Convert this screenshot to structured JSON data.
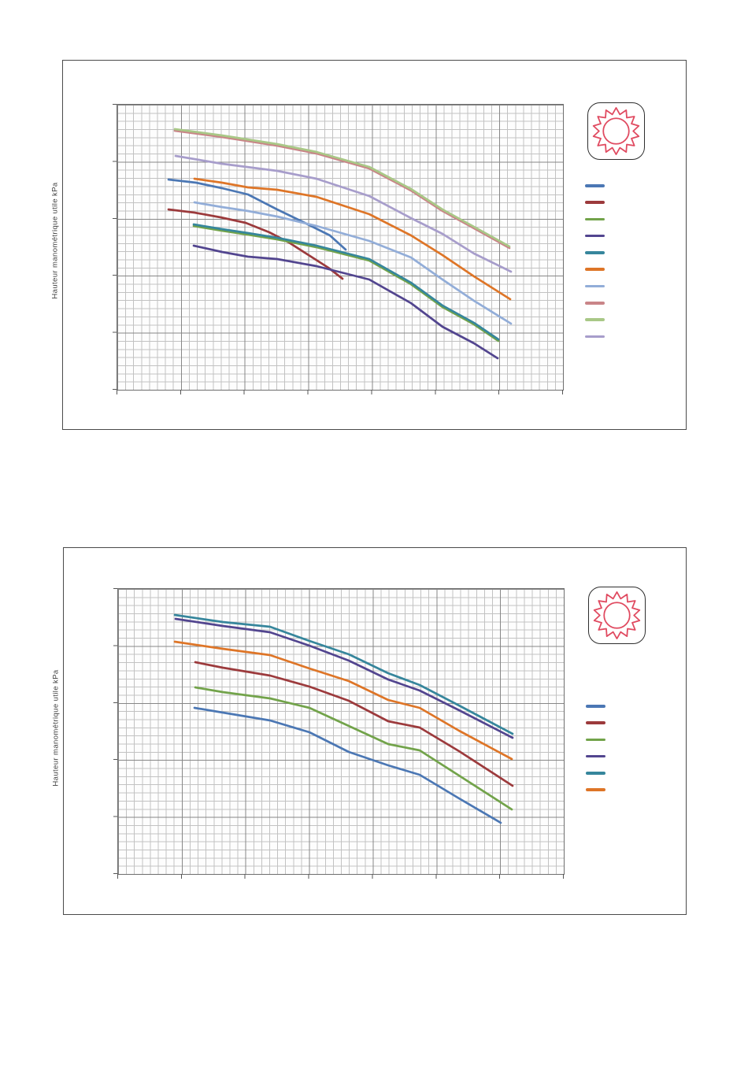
{
  "page": {
    "background": "#ffffff",
    "frame_border_color": "#4a4a4a"
  },
  "sun_badge": {
    "icon": "sun-icon",
    "color": "#E04A60",
    "box_border": "#2e2e2e"
  },
  "axes_note": "No numeric tick labels are shown on either chart; only minor/major gridlines and tick marks.",
  "chart_data": [
    {
      "type": "line",
      "title": "",
      "xlabel": "",
      "ylabel": "Hauteur manométrique utile kPa",
      "x_tick_labels": [],
      "y_tick_labels": [],
      "grid": "major+minor",
      "legend_position": "right",
      "legend_labels_visible": false,
      "plot_size": [
        566,
        362
      ],
      "units": "points are pixel positions inside the 566x362 plot area (no axis values printed on chart)",
      "series": [
        {
          "name": "series-1-blue",
          "color": "#4B77B4",
          "points": [
            [
              65,
              95
            ],
            [
              100,
              99
            ],
            [
              133,
              106
            ],
            [
              166,
              114
            ],
            [
              203,
              133
            ],
            [
              236,
              149
            ],
            [
              270,
              166
            ],
            [
              290,
              184
            ]
          ]
        },
        {
          "name": "series-2-dark-red",
          "color": "#9C3A3C",
          "points": [
            [
              65,
              133
            ],
            [
              98,
              137
            ],
            [
              131,
              143
            ],
            [
              163,
              150
            ],
            [
              193,
              162
            ],
            [
              218,
              175
            ],
            [
              243,
              191
            ],
            [
              268,
              207
            ],
            [
              286,
              221
            ]
          ]
        },
        {
          "name": "series-3-green",
          "color": "#72A34A",
          "points": [
            [
              97,
              154
            ],
            [
              133,
              160
            ],
            [
              166,
              165
            ],
            [
              203,
              171
            ],
            [
              253,
              181
            ],
            [
              320,
              198
            ],
            [
              373,
              228
            ],
            [
              413,
              257
            ],
            [
              453,
              279
            ],
            [
              484,
              300
            ]
          ]
        },
        {
          "name": "series-4-dark-purple",
          "color": "#52458F",
          "points": [
            [
              97,
              179
            ],
            [
              133,
              187
            ],
            [
              166,
              193
            ],
            [
              203,
              196
            ],
            [
              253,
              205
            ],
            [
              320,
              222
            ],
            [
              373,
              252
            ],
            [
              413,
              282
            ],
            [
              453,
              303
            ],
            [
              483,
              322
            ]
          ]
        },
        {
          "name": "series-5-teal",
          "color": "#36869C",
          "points": [
            [
              97,
              152
            ],
            [
              133,
              158
            ],
            [
              166,
              163
            ],
            [
              203,
              169
            ],
            [
              253,
              179
            ],
            [
              320,
              196
            ],
            [
              373,
              226
            ],
            [
              413,
              255
            ],
            [
              453,
              277
            ],
            [
              484,
              298
            ]
          ]
        },
        {
          "name": "series-6-orange",
          "color": "#DE7527",
          "points": [
            [
              98,
              94
            ],
            [
              133,
              99
            ],
            [
              166,
              105
            ],
            [
              203,
              108
            ],
            [
              253,
              117
            ],
            [
              320,
              139
            ],
            [
              373,
              166
            ],
            [
              413,
              191
            ],
            [
              453,
              218
            ],
            [
              499,
              247
            ]
          ]
        },
        {
          "name": "series-7-periwinkle",
          "color": "#92ADD8",
          "points": [
            [
              98,
              124
            ],
            [
              133,
              130
            ],
            [
              166,
              135
            ],
            [
              203,
              142
            ],
            [
              253,
              154
            ],
            [
              320,
              173
            ],
            [
              373,
              194
            ],
            [
              413,
              222
            ],
            [
              453,
              249
            ],
            [
              500,
              278
            ]
          ]
        },
        {
          "name": "series-8-pink",
          "color": "#C98588",
          "points": [
            [
              73,
              33
            ],
            [
              133,
              41
            ],
            [
              203,
              52
            ],
            [
              253,
              62
            ],
            [
              320,
              81
            ],
            [
              373,
              109
            ],
            [
              413,
              135
            ],
            [
              453,
              157
            ],
            [
              498,
              182
            ]
          ]
        },
        {
          "name": "series-9-light-green",
          "color": "#A9C887",
          "points": [
            [
              73,
              31
            ],
            [
              133,
              39
            ],
            [
              203,
              50
            ],
            [
              253,
              60
            ],
            [
              320,
              79
            ],
            [
              373,
              107
            ],
            [
              413,
              133
            ],
            [
              453,
              155
            ],
            [
              498,
              180
            ]
          ]
        },
        {
          "name": "series-10-light-purple",
          "color": "#A79DCB",
          "points": [
            [
              74,
              65
            ],
            [
              133,
              75
            ],
            [
              203,
              84
            ],
            [
              253,
              94
            ],
            [
              320,
              116
            ],
            [
              373,
              144
            ],
            [
              413,
              164
            ],
            [
              453,
              189
            ],
            [
              500,
              212
            ]
          ]
        }
      ]
    },
    {
      "type": "line",
      "title": "",
      "xlabel": "",
      "ylabel": "Hauteur manométrique utile kPa",
      "x_tick_labels": [],
      "y_tick_labels": [],
      "grid": "major+minor",
      "legend_position": "right",
      "legend_labels_visible": false,
      "plot_size": [
        566,
        362
      ],
      "units": "points are pixel positions inside the 566x362 plot area (no axis values printed on chart)",
      "series": [
        {
          "name": "series-1-blue",
          "color": "#4B77B4",
          "points": [
            [
              97,
              151
            ],
            [
              133,
              157
            ],
            [
              193,
              167
            ],
            [
              243,
              182
            ],
            [
              293,
              207
            ],
            [
              343,
              224
            ],
            [
              383,
              236
            ],
            [
              433,
              266
            ],
            [
              486,
              297
            ]
          ]
        },
        {
          "name": "series-2-dark-red",
          "color": "#9C3A3C",
          "points": [
            [
              98,
              93
            ],
            [
              133,
              100
            ],
            [
              193,
              110
            ],
            [
              243,
              124
            ],
            [
              293,
              142
            ],
            [
              343,
              168
            ],
            [
              383,
              176
            ],
            [
              433,
              206
            ],
            [
              501,
              250
            ]
          ]
        },
        {
          "name": "series-3-green",
          "color": "#72A34A",
          "points": [
            [
              98,
              125
            ],
            [
              133,
              131
            ],
            [
              193,
              139
            ],
            [
              243,
              151
            ],
            [
              293,
              174
            ],
            [
              343,
              197
            ],
            [
              383,
              205
            ],
            [
              433,
              237
            ],
            [
              500,
              280
            ]
          ]
        },
        {
          "name": "series-4-dark-purple",
          "color": "#52458F",
          "points": [
            [
              73,
              38
            ],
            [
              133,
              47
            ],
            [
              193,
              55
            ],
            [
              243,
              72
            ],
            [
              293,
              91
            ],
            [
              343,
              115
            ],
            [
              383,
              129
            ],
            [
              433,
              154
            ],
            [
              501,
              189
            ]
          ]
        },
        {
          "name": "series-5-teal",
          "color": "#36869C",
          "points": [
            [
              72,
              33
            ],
            [
              133,
              42
            ],
            [
              193,
              48
            ],
            [
              243,
              66
            ],
            [
              293,
              83
            ],
            [
              343,
              107
            ],
            [
              383,
              122
            ],
            [
              433,
              148
            ],
            [
              501,
              184
            ]
          ]
        },
        {
          "name": "series-6-orange",
          "color": "#DE7527",
          "points": [
            [
              72,
              67
            ],
            [
              133,
              76
            ],
            [
              193,
              84
            ],
            [
              243,
              101
            ],
            [
              293,
              117
            ],
            [
              343,
              141
            ],
            [
              383,
              151
            ],
            [
              433,
              180
            ],
            [
              500,
              216
            ]
          ]
        }
      ]
    }
  ]
}
